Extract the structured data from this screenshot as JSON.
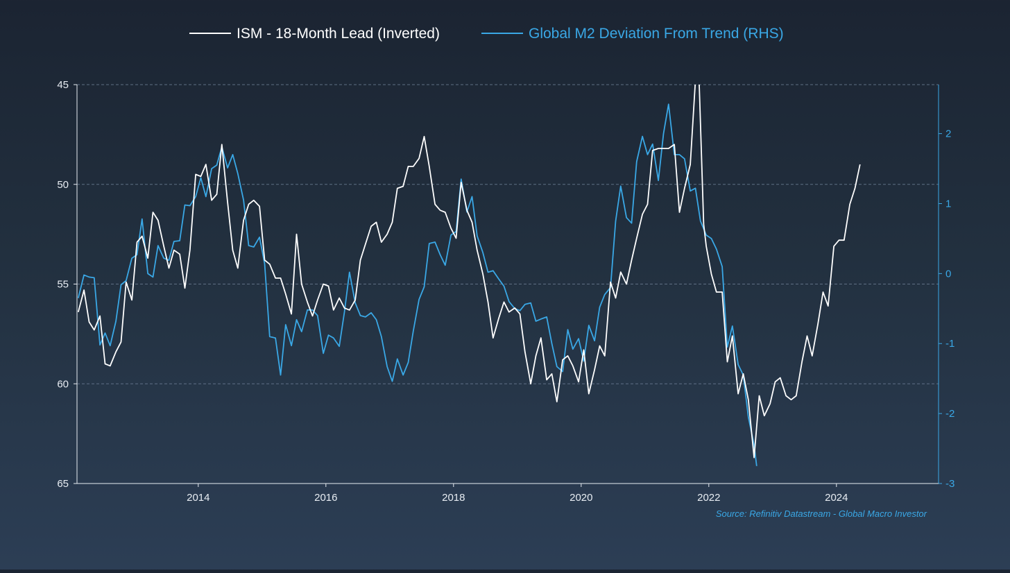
{
  "chart_data": {
    "type": "line",
    "colors": {
      "ism": "#ffffff",
      "m2": "#3aa8e6",
      "axis_left": "#e8edf3",
      "axis_right": "#3aa8e6",
      "grid": "#6b7d92"
    },
    "legend": [
      {
        "name": "ISM - 18-Month Lead (Inverted)",
        "color": "#ffffff"
      },
      {
        "name": "Global M2 Deviation From Trend (RHS)",
        "color": "#3aa8e6"
      }
    ],
    "x_axis": {
      "range": [
        2012.1,
        2025.6
      ],
      "ticks": [
        2014,
        2016,
        2018,
        2020,
        2022,
        2024
      ],
      "tick_labels": [
        "2014",
        "2016",
        "2018",
        "2020",
        "2022",
        "2024"
      ]
    },
    "y_left": {
      "range": [
        45,
        65
      ],
      "inverted": true,
      "ticks": [
        45,
        50,
        55,
        60,
        65
      ],
      "tick_labels": [
        "45",
        "50",
        "55",
        "60",
        "65"
      ]
    },
    "y_right": {
      "range": [
        -3,
        2.7
      ],
      "ticks": [
        2,
        1,
        0,
        -1,
        -2,
        -3
      ],
      "tick_labels": [
        "2",
        "1",
        "0",
        "-1",
        "-2",
        "-3"
      ]
    },
    "grid": true,
    "source": "Source: Refinitiv Datastream - Global Macro Investor",
    "series": [
      {
        "name": "ISM - 18-Month Lead (Inverted)",
        "axis": "left",
        "points": [
          [
            2012.12,
            56.4
          ],
          [
            2012.21,
            55.3
          ],
          [
            2012.29,
            56.9
          ],
          [
            2012.37,
            57.3
          ],
          [
            2012.46,
            56.6
          ],
          [
            2012.54,
            59.0
          ],
          [
            2012.62,
            59.1
          ],
          [
            2012.71,
            58.4
          ],
          [
            2012.79,
            57.9
          ],
          [
            2012.87,
            54.9
          ],
          [
            2012.96,
            55.8
          ],
          [
            2013.04,
            52.9
          ],
          [
            2013.12,
            52.6
          ],
          [
            2013.21,
            53.7
          ],
          [
            2013.29,
            51.4
          ],
          [
            2013.37,
            51.8
          ],
          [
            2013.46,
            53.1
          ],
          [
            2013.54,
            54.2
          ],
          [
            2013.62,
            53.3
          ],
          [
            2013.71,
            53.5
          ],
          [
            2013.79,
            55.2
          ],
          [
            2013.87,
            53.3
          ],
          [
            2013.96,
            49.5
          ],
          [
            2014.04,
            49.6
          ],
          [
            2014.12,
            49.0
          ],
          [
            2014.21,
            50.8
          ],
          [
            2014.29,
            50.5
          ],
          [
            2014.37,
            48.0
          ],
          [
            2014.46,
            50.9
          ],
          [
            2014.54,
            53.3
          ],
          [
            2014.62,
            54.2
          ],
          [
            2014.71,
            51.8
          ],
          [
            2014.79,
            51.0
          ],
          [
            2014.87,
            50.8
          ],
          [
            2014.96,
            51.1
          ],
          [
            2015.04,
            53.8
          ],
          [
            2015.12,
            54.0
          ],
          [
            2015.21,
            54.7
          ],
          [
            2015.29,
            54.7
          ],
          [
            2015.37,
            55.5
          ],
          [
            2015.46,
            56.5
          ],
          [
            2015.54,
            52.5
          ],
          [
            2015.62,
            55.0
          ],
          [
            2015.71,
            55.9
          ],
          [
            2015.79,
            56.6
          ],
          [
            2015.87,
            55.8
          ],
          [
            2015.96,
            55.0
          ],
          [
            2016.04,
            55.1
          ],
          [
            2016.12,
            56.3
          ],
          [
            2016.21,
            55.7
          ],
          [
            2016.29,
            56.2
          ],
          [
            2016.37,
            56.3
          ],
          [
            2016.46,
            55.8
          ],
          [
            2016.54,
            53.8
          ],
          [
            2016.62,
            53.0
          ],
          [
            2016.71,
            52.1
          ],
          [
            2016.79,
            51.9
          ],
          [
            2016.87,
            52.9
          ],
          [
            2016.96,
            52.5
          ],
          [
            2017.04,
            51.9
          ],
          [
            2017.12,
            50.2
          ],
          [
            2017.21,
            50.1
          ],
          [
            2017.29,
            49.1
          ],
          [
            2017.37,
            49.1
          ],
          [
            2017.46,
            48.7
          ],
          [
            2017.54,
            47.6
          ],
          [
            2017.62,
            49.1
          ],
          [
            2017.71,
            51.0
          ],
          [
            2017.79,
            51.3
          ],
          [
            2017.87,
            51.4
          ],
          [
            2017.96,
            52.2
          ],
          [
            2018.04,
            52.7
          ],
          [
            2018.12,
            49.9
          ],
          [
            2018.21,
            51.3
          ],
          [
            2018.29,
            51.9
          ],
          [
            2018.37,
            53.3
          ],
          [
            2018.46,
            54.5
          ],
          [
            2018.54,
            55.9
          ],
          [
            2018.62,
            57.7
          ],
          [
            2018.71,
            56.7
          ],
          [
            2018.79,
            55.9
          ],
          [
            2018.87,
            56.4
          ],
          [
            2018.96,
            56.2
          ],
          [
            2019.04,
            56.5
          ],
          [
            2019.12,
            58.4
          ],
          [
            2019.21,
            60.0
          ],
          [
            2019.29,
            58.6
          ],
          [
            2019.37,
            57.7
          ],
          [
            2019.46,
            59.8
          ],
          [
            2019.54,
            59.5
          ],
          [
            2019.62,
            60.9
          ],
          [
            2019.71,
            58.8
          ],
          [
            2019.79,
            58.6
          ],
          [
            2019.87,
            59.1
          ],
          [
            2019.96,
            59.9
          ],
          [
            2020.04,
            58.3
          ],
          [
            2020.12,
            60.5
          ],
          [
            2020.21,
            59.3
          ],
          [
            2020.29,
            58.1
          ],
          [
            2020.37,
            58.6
          ],
          [
            2020.46,
            54.9
          ],
          [
            2020.54,
            55.7
          ],
          [
            2020.62,
            54.4
          ],
          [
            2020.71,
            55.0
          ],
          [
            2020.79,
            53.8
          ],
          [
            2020.87,
            52.7
          ],
          [
            2020.96,
            51.5
          ],
          [
            2021.04,
            51.0
          ],
          [
            2021.12,
            48.3
          ],
          [
            2021.21,
            48.2
          ],
          [
            2021.29,
            48.2
          ],
          [
            2021.37,
            48.2
          ],
          [
            2021.46,
            48.0
          ],
          [
            2021.54,
            51.4
          ],
          [
            2021.62,
            50.2
          ],
          [
            2021.71,
            49.0
          ],
          [
            2021.79,
            44.8
          ],
          [
            2021.85,
            45.0
          ],
          [
            2021.92,
            52.0
          ],
          [
            2021.96,
            53.1
          ],
          [
            2022.04,
            54.5
          ],
          [
            2022.12,
            55.4
          ],
          [
            2022.21,
            55.4
          ],
          [
            2022.29,
            58.9
          ],
          [
            2022.37,
            57.6
          ],
          [
            2022.46,
            60.5
          ],
          [
            2022.54,
            59.5
          ],
          [
            2022.62,
            60.8
          ],
          [
            2022.71,
            63.7
          ],
          [
            2022.79,
            60.6
          ],
          [
            2022.87,
            61.6
          ],
          [
            2022.96,
            61.0
          ],
          [
            2023.04,
            59.9
          ],
          [
            2023.12,
            59.7
          ],
          [
            2023.21,
            60.6
          ],
          [
            2023.29,
            60.8
          ],
          [
            2023.37,
            60.6
          ],
          [
            2023.46,
            58.9
          ],
          [
            2023.54,
            57.6
          ],
          [
            2023.62,
            58.6
          ],
          [
            2023.71,
            57.0
          ],
          [
            2023.79,
            55.4
          ],
          [
            2023.87,
            56.1
          ],
          [
            2023.96,
            53.1
          ],
          [
            2024.04,
            52.8
          ],
          [
            2024.12,
            52.8
          ],
          [
            2024.21,
            51.0
          ],
          [
            2024.29,
            50.2
          ],
          [
            2024.37,
            49.0
          ]
        ]
      },
      {
        "name": "Global M2 Deviation From Trend (RHS)",
        "axis": "right",
        "points": [
          [
            2012.12,
            -0.35
          ],
          [
            2012.21,
            -0.02
          ],
          [
            2012.29,
            -0.05
          ],
          [
            2012.37,
            -0.06
          ],
          [
            2012.46,
            -1.02
          ],
          [
            2012.54,
            -0.85
          ],
          [
            2012.62,
            -1.03
          ],
          [
            2012.71,
            -0.68
          ],
          [
            2012.79,
            -0.16
          ],
          [
            2012.87,
            -0.1
          ],
          [
            2012.96,
            0.22
          ],
          [
            2013.04,
            0.27
          ],
          [
            2013.12,
            0.78
          ],
          [
            2013.21,
            0.0
          ],
          [
            2013.29,
            -0.05
          ],
          [
            2013.37,
            0.4
          ],
          [
            2013.46,
            0.22
          ],
          [
            2013.54,
            0.19
          ],
          [
            2013.62,
            0.46
          ],
          [
            2013.71,
            0.47
          ],
          [
            2013.79,
            0.98
          ],
          [
            2013.87,
            0.97
          ],
          [
            2013.96,
            1.1
          ],
          [
            2014.04,
            1.37
          ],
          [
            2014.12,
            1.1
          ],
          [
            2014.21,
            1.5
          ],
          [
            2014.29,
            1.55
          ],
          [
            2014.37,
            1.81
          ],
          [
            2014.46,
            1.51
          ],
          [
            2014.54,
            1.7
          ],
          [
            2014.62,
            1.43
          ],
          [
            2014.71,
            1.05
          ],
          [
            2014.79,
            0.4
          ],
          [
            2014.87,
            0.38
          ],
          [
            2014.96,
            0.52
          ],
          [
            2015.04,
            0.14
          ],
          [
            2015.12,
            -0.9
          ],
          [
            2015.21,
            -0.92
          ],
          [
            2015.29,
            -1.45
          ],
          [
            2015.37,
            -0.73
          ],
          [
            2015.46,
            -1.03
          ],
          [
            2015.54,
            -0.66
          ],
          [
            2015.62,
            -0.83
          ],
          [
            2015.71,
            -0.52
          ],
          [
            2015.79,
            -0.52
          ],
          [
            2015.87,
            -0.6
          ],
          [
            2015.96,
            -1.14
          ],
          [
            2016.04,
            -0.88
          ],
          [
            2016.12,
            -0.92
          ],
          [
            2016.21,
            -1.04
          ],
          [
            2016.29,
            -0.55
          ],
          [
            2016.37,
            0.02
          ],
          [
            2016.46,
            -0.42
          ],
          [
            2016.54,
            -0.6
          ],
          [
            2016.62,
            -0.62
          ],
          [
            2016.71,
            -0.56
          ],
          [
            2016.79,
            -0.66
          ],
          [
            2016.87,
            -0.9
          ],
          [
            2016.96,
            -1.33
          ],
          [
            2017.04,
            -1.54
          ],
          [
            2017.12,
            -1.22
          ],
          [
            2017.21,
            -1.45
          ],
          [
            2017.29,
            -1.27
          ],
          [
            2017.37,
            -0.82
          ],
          [
            2017.46,
            -0.37
          ],
          [
            2017.54,
            -0.19
          ],
          [
            2017.62,
            0.43
          ],
          [
            2017.71,
            0.45
          ],
          [
            2017.79,
            0.27
          ],
          [
            2017.87,
            0.12
          ],
          [
            2017.96,
            0.55
          ],
          [
            2018.04,
            0.6
          ],
          [
            2018.12,
            1.35
          ],
          [
            2018.21,
            0.88
          ],
          [
            2018.29,
            1.1
          ],
          [
            2018.37,
            0.54
          ],
          [
            2018.46,
            0.3
          ],
          [
            2018.54,
            0.02
          ],
          [
            2018.62,
            0.04
          ],
          [
            2018.71,
            -0.08
          ],
          [
            2018.79,
            -0.18
          ],
          [
            2018.87,
            -0.4
          ],
          [
            2018.96,
            -0.5
          ],
          [
            2019.04,
            -0.53
          ],
          [
            2019.12,
            -0.44
          ],
          [
            2019.21,
            -0.42
          ],
          [
            2019.29,
            -0.68
          ],
          [
            2019.37,
            -0.65
          ],
          [
            2019.46,
            -0.62
          ],
          [
            2019.54,
            -1.0
          ],
          [
            2019.62,
            -1.33
          ],
          [
            2019.71,
            -1.4
          ],
          [
            2019.79,
            -0.8
          ],
          [
            2019.87,
            -1.08
          ],
          [
            2019.96,
            -0.93
          ],
          [
            2020.04,
            -1.25
          ],
          [
            2020.12,
            -0.74
          ],
          [
            2020.21,
            -0.96
          ],
          [
            2020.29,
            -0.48
          ],
          [
            2020.37,
            -0.3
          ],
          [
            2020.46,
            -0.2
          ],
          [
            2020.54,
            0.75
          ],
          [
            2020.62,
            1.25
          ],
          [
            2020.71,
            0.8
          ],
          [
            2020.79,
            0.72
          ],
          [
            2020.87,
            1.6
          ],
          [
            2020.96,
            1.96
          ],
          [
            2021.04,
            1.7
          ],
          [
            2021.12,
            1.85
          ],
          [
            2021.21,
            1.33
          ],
          [
            2021.29,
            2.0
          ],
          [
            2021.37,
            2.42
          ],
          [
            2021.46,
            1.7
          ],
          [
            2021.54,
            1.7
          ],
          [
            2021.62,
            1.64
          ],
          [
            2021.71,
            1.18
          ],
          [
            2021.79,
            1.22
          ],
          [
            2021.87,
            0.75
          ],
          [
            2021.96,
            0.55
          ],
          [
            2022.04,
            0.5
          ],
          [
            2022.12,
            0.35
          ],
          [
            2022.21,
            0.1
          ],
          [
            2022.29,
            -1.05
          ],
          [
            2022.37,
            -0.75
          ],
          [
            2022.46,
            -1.3
          ],
          [
            2022.54,
            -1.45
          ],
          [
            2022.62,
            -2.05
          ],
          [
            2022.71,
            -2.45
          ],
          [
            2022.75,
            -2.75
          ]
        ]
      }
    ]
  }
}
